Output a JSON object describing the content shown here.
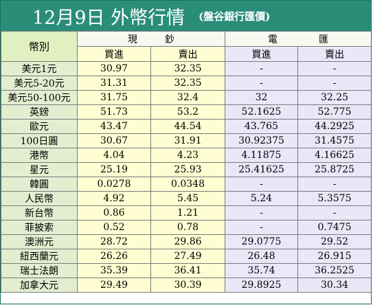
{
  "title": {
    "main": "12月9日 外幣行情",
    "sub": "(盤谷銀行匯價)"
  },
  "headers": {
    "currency": "幣別",
    "cash": "現鈔",
    "telegraphic": "電匯",
    "buy": "買進",
    "sell": "賣出"
  },
  "rows": [
    {
      "currency": "美元1元",
      "cash_buy": "30.97",
      "cash_sell": "32.35",
      "tt_buy": "-",
      "tt_sell": "-"
    },
    {
      "currency": "美元5-20元",
      "cash_buy": "31.31",
      "cash_sell": "32.35",
      "tt_buy": "-",
      "tt_sell": "-"
    },
    {
      "currency": "美元50-100元",
      "cash_buy": "31.75",
      "cash_sell": "32.4",
      "tt_buy": "32",
      "tt_sell": "32.25"
    },
    {
      "currency": "英鎊",
      "cash_buy": "51.73",
      "cash_sell": "53.2",
      "tt_buy": "52.1625",
      "tt_sell": "52.775"
    },
    {
      "currency": "歐元",
      "cash_buy": "43.47",
      "cash_sell": "44.54",
      "tt_buy": "43.765",
      "tt_sell": "44.2925"
    },
    {
      "currency": "100日圓",
      "cash_buy": "30.67",
      "cash_sell": "31.91",
      "tt_buy": "30.92375",
      "tt_sell": "31.4575"
    },
    {
      "currency": "港幣",
      "cash_buy": "4.04",
      "cash_sell": "4.23",
      "tt_buy": "4.11875",
      "tt_sell": "4.16625"
    },
    {
      "currency": "星元",
      "cash_buy": "25.19",
      "cash_sell": "25.93",
      "tt_buy": "25.41625",
      "tt_sell": "25.8725"
    },
    {
      "currency": "韓圓",
      "cash_buy": "0.0278",
      "cash_sell": "0.0348",
      "tt_buy": "-",
      "tt_sell": "-"
    },
    {
      "currency": "人民幣",
      "cash_buy": "4.92",
      "cash_sell": "5.45",
      "tt_buy": "5.24",
      "tt_sell": "5.3575"
    },
    {
      "currency": "新台幣",
      "cash_buy": "0.86",
      "cash_sell": "1.21",
      "tt_buy": "-",
      "tt_sell": "-"
    },
    {
      "currency": "菲披索",
      "cash_buy": "0.52",
      "cash_sell": "0.78",
      "tt_buy": "-",
      "tt_sell": "0.7475"
    },
    {
      "currency": "澳洲元",
      "cash_buy": "28.72",
      "cash_sell": "29.86",
      "tt_buy": "29.0775",
      "tt_sell": "29.52"
    },
    {
      "currency": "紐西蘭元",
      "cash_buy": "26.26",
      "cash_sell": "27.49",
      "tt_buy": "26.48",
      "tt_sell": "26.915"
    },
    {
      "currency": "瑞士法朗",
      "cash_buy": "35.39",
      "cash_sell": "36.41",
      "tt_buy": "35.74",
      "tt_sell": "36.2525"
    },
    {
      "currency": "加拿大元",
      "cash_buy": "29.49",
      "cash_sell": "30.39",
      "tt_buy": "29.8925",
      "tt_sell": "30.34"
    }
  ]
}
